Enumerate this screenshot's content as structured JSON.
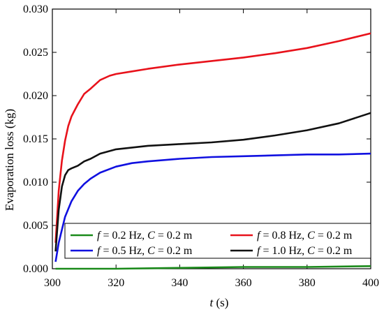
{
  "chart_data": {
    "type": "line",
    "title": "",
    "xlabel": {
      "var": "t",
      "unit": " (s)"
    },
    "ylabel": "Evaporation loss (kg)",
    "xlim": [
      300,
      400
    ],
    "ylim": [
      0,
      0.03
    ],
    "xticks": [
      300,
      320,
      340,
      360,
      380,
      400
    ],
    "yticks": [
      0.0,
      0.005,
      0.01,
      0.015,
      0.02,
      0.025,
      0.03
    ],
    "ytick_labels": [
      "0.000",
      "0.005",
      "0.010",
      "0.015",
      "0.020",
      "0.025",
      "0.030"
    ],
    "grid": false,
    "legend_position": "bottom",
    "series": [
      {
        "name": "f = 0.2 Hz, C = 0.2 m",
        "legend": {
          "f_value": " = 0.2 Hz, ",
          "c_value": " = 0.2 m"
        },
        "color": "#1a8a1a",
        "x": [
          301,
          320,
          340,
          360,
          380,
          400
        ],
        "y": [
          0.0,
          0.0,
          0.0001,
          0.0002,
          0.0002,
          0.0003
        ]
      },
      {
        "name": "f = 0.8 Hz, C = 0.2 m",
        "legend": {
          "f_value": " = 0.8 Hz, ",
          "c_value": " = 0.2 m"
        },
        "color": "#e8121b",
        "x": [
          301,
          302,
          303,
          304,
          305,
          306,
          307,
          308,
          309,
          310,
          312,
          315,
          318,
          320,
          325,
          330,
          340,
          350,
          360,
          370,
          380,
          390,
          400
        ],
        "y": [
          0.003,
          0.009,
          0.0125,
          0.0148,
          0.0165,
          0.0176,
          0.0183,
          0.019,
          0.0196,
          0.0202,
          0.0208,
          0.0218,
          0.0223,
          0.0225,
          0.0228,
          0.0231,
          0.0236,
          0.024,
          0.0244,
          0.0249,
          0.0255,
          0.0263,
          0.0272
        ]
      },
      {
        "name": "f = 0.5 Hz, C = 0.2 m",
        "legend": {
          "f_value": " = 0.5 Hz, ",
          "c_value": " = 0.2 m"
        },
        "color": "#1010e0",
        "x": [
          301,
          302,
          304,
          306,
          308,
          310,
          312,
          315,
          320,
          325,
          330,
          340,
          350,
          360,
          370,
          380,
          390,
          400
        ],
        "y": [
          0.0008,
          0.003,
          0.006,
          0.0078,
          0.009,
          0.0098,
          0.0104,
          0.0111,
          0.0118,
          0.0122,
          0.0124,
          0.0127,
          0.0129,
          0.013,
          0.0131,
          0.0132,
          0.0132,
          0.0133
        ]
      },
      {
        "name": "f = 1.0 Hz, C = 0.2 m",
        "legend": {
          "f_value": " = 1.0 Hz, ",
          "c_value": " = 0.2 m"
        },
        "color": "#111111",
        "x": [
          301,
          302,
          303,
          304,
          305,
          306,
          308,
          310,
          312,
          315,
          320,
          325,
          330,
          340,
          350,
          360,
          370,
          380,
          390,
          400
        ],
        "y": [
          0.002,
          0.0068,
          0.0095,
          0.0108,
          0.0114,
          0.0116,
          0.0119,
          0.0124,
          0.0127,
          0.0133,
          0.0138,
          0.014,
          0.0142,
          0.0144,
          0.0146,
          0.0149,
          0.0154,
          0.016,
          0.0168,
          0.018
        ]
      }
    ]
  }
}
